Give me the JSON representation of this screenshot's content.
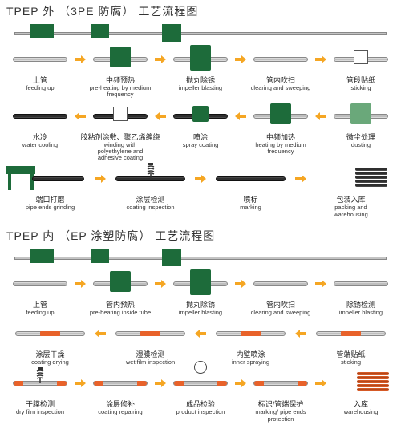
{
  "section1": {
    "title": "TPEP 外 （3PE 防腐） 工艺流程图",
    "rows": [
      {
        "dir": "right",
        "steps": [
          {
            "cn": "上管",
            "en": "feeding up",
            "g": "rail"
          },
          {
            "cn": "中频预热",
            "en": "pre-heating by medium frequency",
            "g": "machine"
          },
          {
            "cn": "抛丸除锈",
            "en": "impeller blasting",
            "g": "machine-tall"
          },
          {
            "cn": "管内吹扫",
            "en": "clearing and sweeping",
            "g": "pipe"
          },
          {
            "cn": "管段贴纸",
            "en": "sticking",
            "g": "box"
          }
        ]
      },
      {
        "dir": "left",
        "steps": [
          {
            "cn": "水冷",
            "en": "water cooling",
            "g": "dark"
          },
          {
            "cn": "胶粘剂涂敷、聚乙烯缠绕",
            "en": "winding with polyethylene and adhesive coating",
            "g": "dark-box"
          },
          {
            "cn": "喷涂",
            "en": "spray coating",
            "g": "dark-machine"
          },
          {
            "cn": "中频加热",
            "en": "heating by medium frequency",
            "g": "machine"
          },
          {
            "cn": "微尘处理",
            "en": "dusting",
            "g": "machine-light"
          }
        ]
      },
      {
        "dir": "right",
        "steps": [
          {
            "cn": "端口打磨",
            "en": "pipe ends grinding",
            "g": "station"
          },
          {
            "cn": "涂层检测",
            "en": "coating inspection",
            "g": "spring"
          },
          {
            "cn": "喷标",
            "en": "marking",
            "g": "dark"
          },
          {
            "cn": "包装入库",
            "en": "packing and warehousing",
            "g": "stack"
          }
        ]
      }
    ]
  },
  "section2": {
    "title": "TPEP 内 （EP 涂塑防腐） 工艺流程图",
    "rows": [
      {
        "dir": "right",
        "steps": [
          {
            "cn": "上管",
            "en": "feeding up",
            "g": "rail"
          },
          {
            "cn": "管内预热",
            "en": "pre-heating inside tube",
            "g": "machine"
          },
          {
            "cn": "抛丸除锈",
            "en": "impeller blasting",
            "g": "machine-tall"
          },
          {
            "cn": "管内吹扫",
            "en": "clearing and sweeping",
            "g": "pipe"
          },
          {
            "cn": "除锈检测",
            "en": "impeller blasting",
            "g": "pipe"
          }
        ]
      },
      {
        "dir": "left",
        "steps": [
          {
            "cn": "涂层干燥",
            "en": "coating drying",
            "g": "orange-mid"
          },
          {
            "cn": "湿膜检测",
            "en": "wet film inspection",
            "g": "orange-mid"
          },
          {
            "cn": "内壁喷涂",
            "en": "inner spraying",
            "g": "orange-mid"
          },
          {
            "cn": "管端贴纸",
            "en": "sticking",
            "g": "orange-mid"
          }
        ]
      },
      {
        "dir": "right",
        "steps": [
          {
            "cn": "干膜检测",
            "en": "dry film inspection",
            "g": "spring-orange"
          },
          {
            "cn": "涂层修补",
            "en": "coating repairing",
            "g": "orange-ends"
          },
          {
            "cn": "成品检验",
            "en": "product inspection",
            "g": "gauge"
          },
          {
            "cn": "标识/管端保护",
            "en": "marking/ pipe ends protection",
            "g": "orange-ends"
          },
          {
            "cn": "入库",
            "en": "warehousing",
            "g": "stack-orange"
          }
        ]
      }
    ]
  },
  "colors": {
    "machine": "#1d6b3a",
    "arrow": "#f5a623",
    "pipe": "#b0b0b0",
    "orange": "#e8622a",
    "dark": "#2a2a2a"
  }
}
